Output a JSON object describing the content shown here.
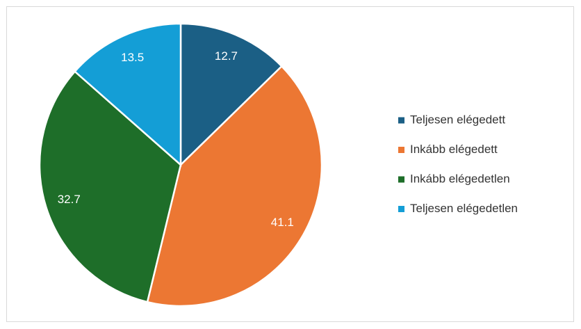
{
  "chart_data": {
    "type": "pie",
    "categories": [
      "Teljesen elégedett",
      "Inkább elégedett",
      "Inkább elégedetlen",
      "Teljesen elégedetlen"
    ],
    "values": [
      12.7,
      41.1,
      32.7,
      13.5
    ],
    "colors": [
      "#1b5f85",
      "#ec7733",
      "#1e6e29",
      "#149ed6"
    ],
    "legend": "right"
  }
}
